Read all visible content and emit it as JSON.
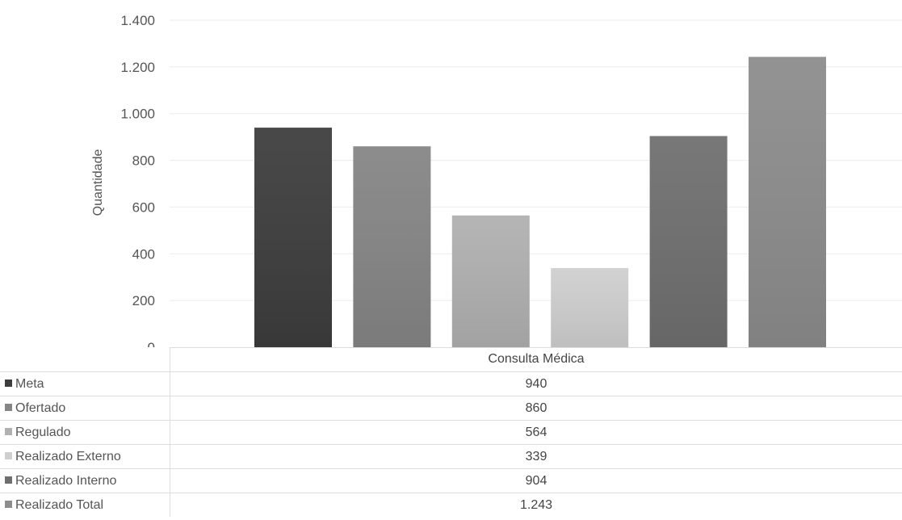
{
  "chart_data": {
    "type": "bar",
    "categories": [
      "Consulta Médica"
    ],
    "series": [
      {
        "name": "Meta",
        "values": [
          940
        ],
        "label": "940",
        "color": "#3d3d3d"
      },
      {
        "name": "Ofertado",
        "values": [
          860
        ],
        "label": "860",
        "color": "#858585"
      },
      {
        "name": "Regulado",
        "values": [
          564
        ],
        "label": "564",
        "color": "#b0b0b0"
      },
      {
        "name": "Realizado Externo",
        "values": [
          339
        ],
        "label": "339",
        "color": "#cfcfcf"
      },
      {
        "name": "Realizado Interno",
        "values": [
          904
        ],
        "label": "904",
        "color": "#6f6f6f"
      },
      {
        "name": "Realizado Total",
        "values": [
          1243
        ],
        "label": "1.243",
        "color": "#8c8c8c"
      }
    ],
    "ylabel": "Quantidade",
    "xlabel": "",
    "ylim": [
      0,
      1400
    ],
    "yticks": [
      {
        "value": 0,
        "label": "0"
      },
      {
        "value": 200,
        "label": "200"
      },
      {
        "value": 400,
        "label": "400"
      },
      {
        "value": 600,
        "label": "600"
      },
      {
        "value": 800,
        "label": "800"
      },
      {
        "value": 1000,
        "label": "1.000"
      },
      {
        "value": 1200,
        "label": "1.200"
      },
      {
        "value": 1400,
        "label": "1.400"
      }
    ],
    "grid": true,
    "legend": "data-table-below"
  }
}
